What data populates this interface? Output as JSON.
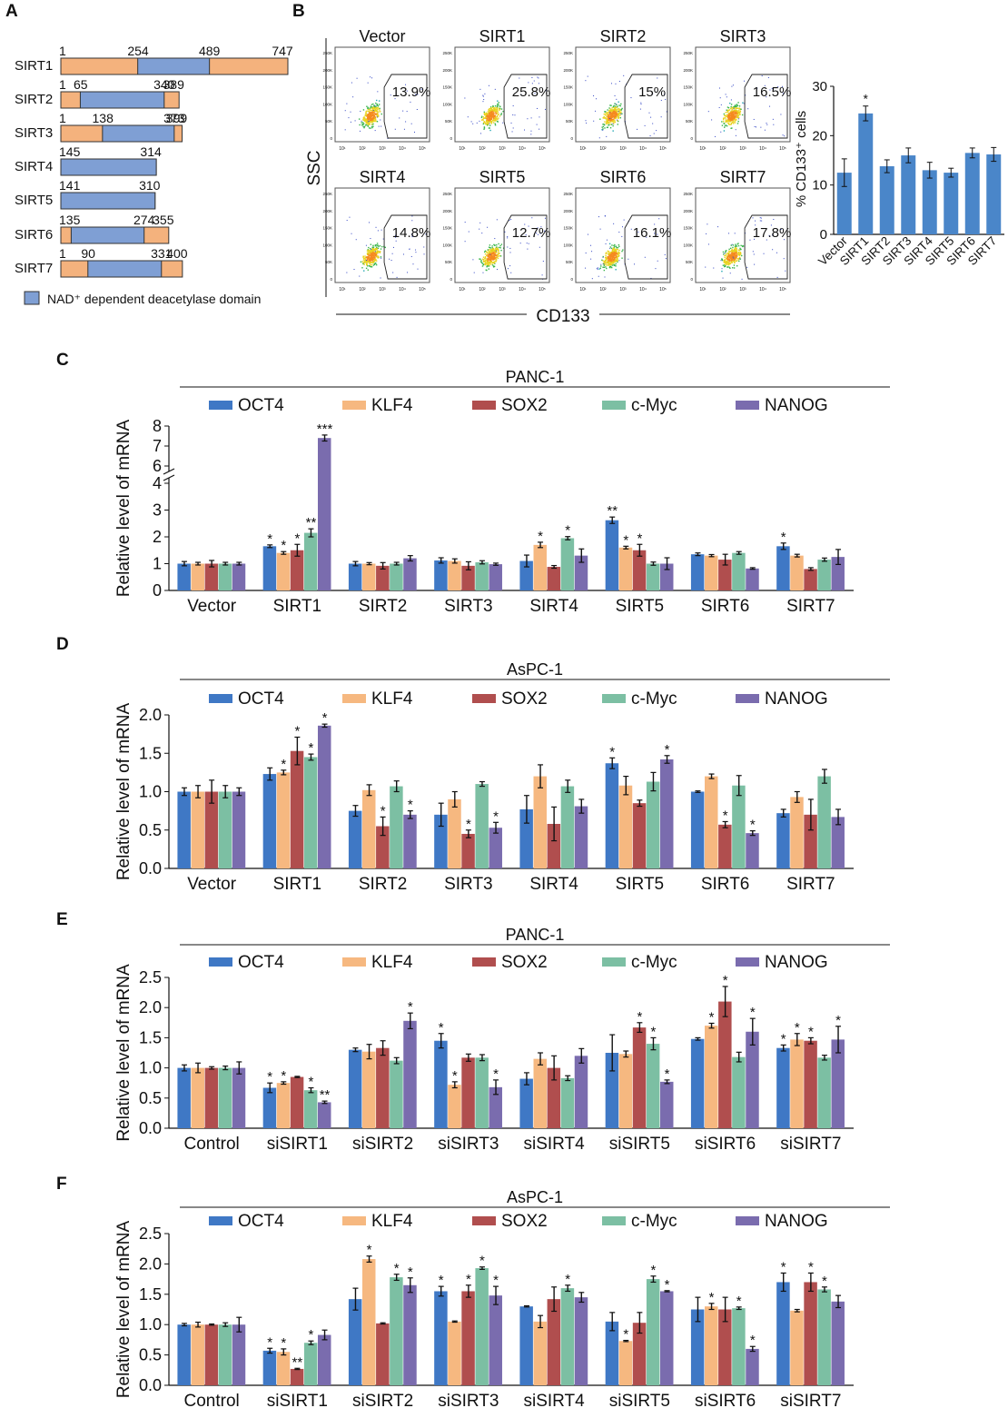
{
  "figure": {
    "panel_labels": [
      "A",
      "B",
      "C",
      "D",
      "E",
      "F"
    ]
  },
  "colors": {
    "OCT4": "#3f78c5",
    "KLF4": "#f6b880",
    "SOX2": "#b04e4e",
    "c-Myc": "#7cbfa3",
    "NANOG": "#7a6cae",
    "domain": "#7f9fd4",
    "terminal": "#f4b27d",
    "bar_b": "#4a86c9"
  },
  "panel_a": {
    "legend": "NAD⁺ dependent deacetylase domain",
    "proteins": [
      {
        "name": "SIRT1",
        "length": 747,
        "domain": [
          254,
          489
        ],
        "labels": [
          "1",
          "254",
          "489",
          "747"
        ]
      },
      {
        "name": "SIRT2",
        "length": 389,
        "domain": [
          65,
          340
        ],
        "labels": [
          "1",
          "65",
          "340",
          "389"
        ]
      },
      {
        "name": "SIRT3",
        "length": 399,
        "domain": [
          138,
          373
        ],
        "labels": [
          "1",
          "138",
          "373",
          "399"
        ]
      },
      {
        "name": "SIRT4",
        "length": 314,
        "domain": [
          1,
          314
        ],
        "labels": [
          "145",
          "314"
        ]
      },
      {
        "name": "SIRT5",
        "length": 310,
        "domain": [
          1,
          310
        ],
        "labels": [
          "141",
          "310"
        ]
      },
      {
        "name": "SIRT6",
        "length": 355,
        "domain": [
          35,
          274
        ],
        "labels": [
          "135",
          "274",
          "355"
        ]
      },
      {
        "name": "SIRT7",
        "length": 400,
        "domain": [
          90,
          331
        ],
        "labels": [
          "1",
          "90",
          "331",
          "400"
        ]
      }
    ]
  },
  "panel_b": {
    "ylabel": "SSC",
    "xlabel": "CD133",
    "y_ticks": [
      "250K",
      "200K",
      "150K",
      "100K",
      "50K",
      "0"
    ],
    "x_ticks": [
      "10¹",
      "10²",
      "10³",
      "10⁴",
      "10⁵"
    ],
    "plots": [
      {
        "name": "Vector",
        "pct": "13.9%",
        "highlight": false
      },
      {
        "name": "SIRT1",
        "pct": "25.8%",
        "highlight": true
      },
      {
        "name": "SIRT2",
        "pct": "15%",
        "highlight": false
      },
      {
        "name": "SIRT3",
        "pct": "16.5%",
        "highlight": false
      },
      {
        "name": "SIRT4",
        "pct": "14.8%",
        "highlight": false
      },
      {
        "name": "SIRT5",
        "pct": "12.7%",
        "highlight": false
      },
      {
        "name": "SIRT6",
        "pct": "16.1%",
        "highlight": false
      },
      {
        "name": "SIRT7",
        "pct": "17.8%",
        "highlight": false
      }
    ],
    "bar_chart": {
      "type": "bar",
      "ylabel": "% CD133⁺ cells",
      "categories": [
        "Vector",
        "SIRT1",
        "SIRT2",
        "SIRT3",
        "SIRT4",
        "SIRT5",
        "SIRT6",
        "SIRT7"
      ],
      "values": [
        12.5,
        24.5,
        13.8,
        16.0,
        13.0,
        12.5,
        16.5,
        16.2
      ],
      "errors": [
        2.8,
        1.5,
        1.3,
        1.5,
        1.6,
        0.9,
        1.0,
        1.4
      ],
      "sig": [
        "",
        "*",
        "",
        "",
        "",
        "",
        "",
        ""
      ],
      "ylim": [
        0,
        30
      ],
      "yticks": [
        0,
        10,
        20,
        30
      ]
    }
  },
  "chart_data": [
    {
      "panel": "C",
      "type": "bar",
      "title": "PANC-1",
      "ylabel": "Relative level of mRNA",
      "categories": [
        "Vector",
        "SIRT1",
        "SIRT2",
        "SIRT3",
        "SIRT4",
        "SIRT5",
        "SIRT6",
        "SIRT7"
      ],
      "ylim": [
        0,
        8
      ],
      "y_break": [
        4,
        6
      ],
      "yticks": [
        0,
        1,
        2,
        3,
        4,
        6,
        7,
        8
      ],
      "series": [
        {
          "name": "OCT4",
          "values": [
            1.0,
            1.65,
            1.0,
            1.12,
            1.1,
            2.62,
            1.35,
            1.65
          ],
          "errors": [
            0.08,
            0.05,
            0.08,
            0.1,
            0.22,
            0.12,
            0.05,
            0.12
          ],
          "sig": [
            "",
            "*",
            "",
            "",
            "",
            "**",
            "",
            "*"
          ]
        },
        {
          "name": "KLF4",
          "values": [
            1.0,
            1.4,
            1.0,
            1.1,
            1.7,
            1.6,
            1.3,
            1.3
          ],
          "errors": [
            0.05,
            0.05,
            0.04,
            0.08,
            0.1,
            0.05,
            0.04,
            0.05
          ],
          "sig": [
            "",
            "*",
            "",
            "",
            "*",
            "*",
            "",
            ""
          ]
        },
        {
          "name": "SOX2",
          "values": [
            1.0,
            1.5,
            0.92,
            0.92,
            0.88,
            1.5,
            1.15,
            0.8
          ],
          "errors": [
            0.12,
            0.22,
            0.12,
            0.15,
            0.05,
            0.22,
            0.2,
            0.05
          ],
          "sig": [
            "",
            "*",
            "",
            "",
            "",
            "*",
            "",
            ""
          ]
        },
        {
          "name": "c-Myc",
          "values": [
            1.0,
            2.15,
            1.0,
            1.05,
            1.95,
            1.0,
            1.4,
            1.15
          ],
          "errors": [
            0.05,
            0.15,
            0.05,
            0.06,
            0.06,
            0.06,
            0.05,
            0.06
          ],
          "sig": [
            "",
            "**",
            "",
            "",
            "*",
            "",
            "",
            ""
          ]
        },
        {
          "name": "NANOG",
          "values": [
            1.0,
            7.4,
            1.2,
            0.98,
            1.3,
            1.0,
            0.82,
            1.25
          ],
          "errors": [
            0.05,
            0.15,
            0.1,
            0.04,
            0.25,
            0.22,
            0.03,
            0.28
          ],
          "sig": [
            "",
            "***",
            "",
            "",
            "",
            "",
            "",
            ""
          ]
        }
      ]
    },
    {
      "panel": "D",
      "type": "bar",
      "title": "AsPC-1",
      "ylabel": "Relative level of mRNA",
      "categories": [
        "Vector",
        "SIRT1",
        "SIRT2",
        "SIRT3",
        "SIRT4",
        "SIRT5",
        "SIRT6",
        "SIRT7"
      ],
      "ylim": [
        0,
        2.0
      ],
      "yticks": [
        0.0,
        0.5,
        1.0,
        1.5,
        2.0
      ],
      "series": [
        {
          "name": "OCT4",
          "values": [
            1.0,
            1.23,
            0.75,
            0.7,
            0.77,
            1.37,
            1.0,
            0.72
          ],
          "errors": [
            0.05,
            0.08,
            0.07,
            0.15,
            0.18,
            0.07,
            0.01,
            0.05
          ],
          "sig": [
            "",
            "",
            "",
            "",
            "",
            "*",
            "",
            ""
          ]
        },
        {
          "name": "KLF4",
          "values": [
            1.0,
            1.25,
            1.02,
            0.9,
            1.2,
            1.08,
            1.2,
            0.93
          ],
          "errors": [
            0.08,
            0.03,
            0.07,
            0.1,
            0.15,
            0.12,
            0.03,
            0.07
          ],
          "sig": [
            "",
            "*",
            "",
            "",
            "",
            "",
            "",
            ""
          ]
        },
        {
          "name": "SOX2",
          "values": [
            1.0,
            1.53,
            0.55,
            0.45,
            0.58,
            0.85,
            0.57,
            0.7
          ],
          "errors": [
            0.15,
            0.18,
            0.12,
            0.05,
            0.22,
            0.04,
            0.04,
            0.2
          ],
          "sig": [
            "",
            "*",
            "*",
            "*",
            "",
            "",
            "*",
            ""
          ]
        },
        {
          "name": "c-Myc",
          "values": [
            1.0,
            1.45,
            1.07,
            1.1,
            1.07,
            1.13,
            1.08,
            1.2
          ],
          "errors": [
            0.08,
            0.04,
            0.07,
            0.03,
            0.08,
            0.12,
            0.13,
            0.09
          ],
          "sig": [
            "",
            "*",
            "",
            "",
            "",
            "",
            "",
            ""
          ]
        },
        {
          "name": "NANOG",
          "values": [
            1.0,
            1.86,
            0.7,
            0.53,
            0.81,
            1.42,
            0.46,
            0.67
          ],
          "errors": [
            0.05,
            0.02,
            0.05,
            0.07,
            0.09,
            0.05,
            0.03,
            0.1
          ],
          "sig": [
            "",
            "*",
            "*",
            "*",
            "",
            "*",
            "*",
            ""
          ]
        }
      ]
    },
    {
      "panel": "E",
      "type": "bar",
      "title": "PANC-1",
      "ylabel": "Relative level of mRNA",
      "categories": [
        "Control",
        "siSIRT1",
        "siSIRT2",
        "siSIRT3",
        "siSIRT4",
        "siSIRT5",
        "siSIRT6",
        "siSIRT7"
      ],
      "ylim": [
        0,
        2.5
      ],
      "yticks": [
        0.0,
        0.5,
        1.0,
        1.5,
        2.0,
        2.5
      ],
      "series": [
        {
          "name": "OCT4",
          "values": [
            1.0,
            0.67,
            1.3,
            1.45,
            0.82,
            1.25,
            1.48,
            1.33
          ],
          "errors": [
            0.05,
            0.08,
            0.03,
            0.12,
            0.1,
            0.3,
            0.02,
            0.05
          ],
          "sig": [
            "",
            "*",
            "",
            "*",
            "",
            "",
            "",
            "*"
          ]
        },
        {
          "name": "KLF4",
          "values": [
            1.0,
            0.75,
            1.27,
            0.72,
            1.15,
            1.23,
            1.7,
            1.47
          ],
          "errors": [
            0.08,
            0.02,
            0.12,
            0.05,
            0.1,
            0.05,
            0.04,
            0.1
          ],
          "sig": [
            "",
            "*",
            "",
            "*",
            "",
            "",
            "*",
            "*"
          ]
        },
        {
          "name": "SOX2",
          "values": [
            1.0,
            0.85,
            1.33,
            1.17,
            1.0,
            1.67,
            2.1,
            1.45
          ],
          "errors": [
            0.02,
            0.01,
            0.12,
            0.06,
            0.2,
            0.08,
            0.25,
            0.05
          ],
          "sig": [
            "",
            "",
            "",
            "",
            "",
            "*",
            "*",
            "*"
          ]
        },
        {
          "name": "c-Myc",
          "values": [
            1.0,
            0.63,
            1.12,
            1.17,
            0.83,
            1.4,
            1.18,
            1.17
          ],
          "errors": [
            0.03,
            0.04,
            0.05,
            0.05,
            0.04,
            0.1,
            0.08,
            0.04
          ],
          "sig": [
            "",
            "*",
            "",
            "",
            "",
            "*",
            "",
            ""
          ]
        },
        {
          "name": "NANOG",
          "values": [
            1.0,
            0.43,
            1.78,
            0.68,
            1.2,
            0.77,
            1.6,
            1.47
          ],
          "errors": [
            0.1,
            0.02,
            0.13,
            0.12,
            0.12,
            0.03,
            0.22,
            0.22
          ],
          "sig": [
            "",
            "**",
            "*",
            "*",
            "",
            "*",
            "*",
            "*"
          ]
        }
      ]
    },
    {
      "panel": "F",
      "type": "bar",
      "title": "AsPC-1",
      "ylabel": "Relative level of mRNA",
      "categories": [
        "Control",
        "siSIRT1",
        "siSIRT2",
        "siSIRT3",
        "siSIRT4",
        "siSIRT5",
        "siSIRT6",
        "siSIRT7"
      ],
      "ylim": [
        0,
        2.5
      ],
      "yticks": [
        0.0,
        0.5,
        1.0,
        1.5,
        2.0,
        2.5
      ],
      "series": [
        {
          "name": "OCT4",
          "values": [
            1.0,
            0.57,
            1.42,
            1.55,
            1.3,
            1.05,
            1.25,
            1.7
          ],
          "errors": [
            0.02,
            0.04,
            0.18,
            0.08,
            0.01,
            0.15,
            0.2,
            0.15
          ],
          "sig": [
            "",
            "*",
            "",
            "*",
            "",
            "",
            "",
            "*"
          ]
        },
        {
          "name": "KLF4",
          "values": [
            1.0,
            0.55,
            2.08,
            1.05,
            1.05,
            0.73,
            1.3,
            1.23
          ],
          "errors": [
            0.04,
            0.05,
            0.05,
            0.01,
            0.1,
            0.01,
            0.05,
            0.02
          ],
          "sig": [
            "",
            "*",
            "*",
            "",
            "",
            "*",
            "*",
            ""
          ]
        },
        {
          "name": "SOX2",
          "values": [
            1.0,
            0.27,
            1.02,
            1.55,
            1.42,
            1.03,
            1.25,
            1.7
          ],
          "errors": [
            0.01,
            0.01,
            0.01,
            0.1,
            0.2,
            0.17,
            0.2,
            0.15
          ],
          "sig": [
            "",
            "**",
            "",
            "*",
            "",
            "",
            "",
            "*"
          ]
        },
        {
          "name": "c-Myc",
          "values": [
            1.0,
            0.7,
            1.78,
            1.93,
            1.6,
            1.75,
            1.27,
            1.58
          ],
          "errors": [
            0.03,
            0.03,
            0.05,
            0.02,
            0.05,
            0.05,
            0.02,
            0.04
          ],
          "sig": [
            "",
            "*",
            "*",
            "*",
            "*",
            "*",
            "*",
            "*"
          ]
        },
        {
          "name": "NANOG",
          "values": [
            1.0,
            0.83,
            1.65,
            1.48,
            1.45,
            1.55,
            0.6,
            1.38
          ],
          "errors": [
            0.12,
            0.08,
            0.12,
            0.15,
            0.08,
            0.01,
            0.04,
            0.1
          ],
          "sig": [
            "",
            "",
            "*",
            "*",
            "",
            "*",
            "*",
            ""
          ]
        }
      ]
    }
  ]
}
